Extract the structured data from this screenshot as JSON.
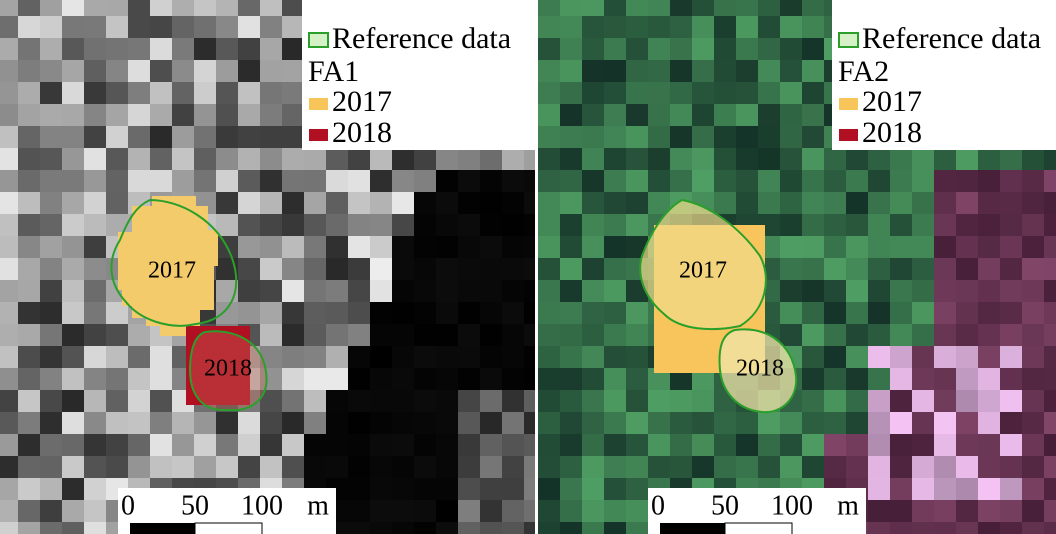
{
  "panels": [
    {
      "legend": {
        "reference": "Reference data",
        "title": "FA1",
        "items": [
          "2017",
          "2018"
        ]
      },
      "labels": [
        "2017",
        "2018"
      ],
      "scale_bar": {
        "ticks": [
          "0",
          "50",
          "100"
        ],
        "unit": "m"
      }
    },
    {
      "legend": {
        "reference": "Reference data",
        "title": "FA2",
        "items": [
          "2017",
          "2018"
        ]
      },
      "labels": [
        "2017",
        "2018"
      ],
      "scale_bar": {
        "ticks": [
          "0",
          "50",
          "100"
        ],
        "unit": "m"
      }
    }
  ]
}
